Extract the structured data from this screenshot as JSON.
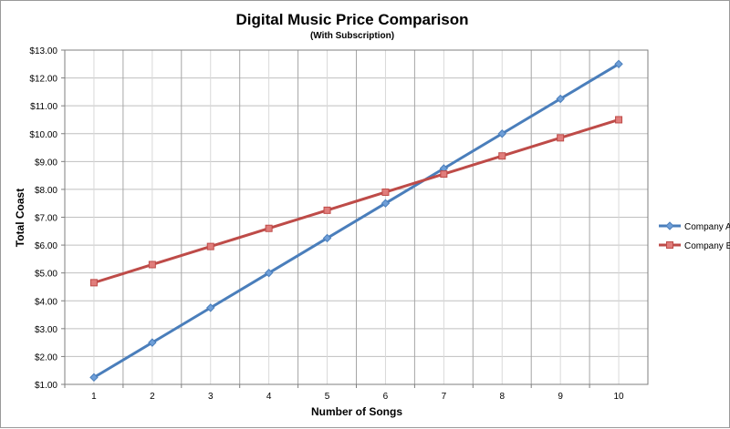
{
  "chart_data": {
    "type": "line",
    "title": "Digital Music Price Comparison",
    "subtitle": "(With Subscription)",
    "xlabel": "Number of Songs",
    "ylabel": "Total Coast",
    "categories": [
      "1",
      "2",
      "3",
      "4",
      "5",
      "6",
      "7",
      "8",
      "9",
      "10"
    ],
    "ylim": [
      1,
      13
    ],
    "ytick_step": 1,
    "ytick_labels": [
      "$1.00",
      "$2.00",
      "$3.00",
      "$4.00",
      "$5.00",
      "$6.00",
      "$7.00",
      "$8.00",
      "$9.00",
      "$10.00",
      "$11.00",
      "$12.00",
      "$13.00"
    ],
    "grid": true,
    "legend_position": "right",
    "series": [
      {
        "name": "Company A",
        "color": "#4a7ebb",
        "marker_fill": "#6f9fd8",
        "marker": "diamond",
        "values": [
          1.25,
          2.5,
          3.75,
          5.0,
          6.25,
          7.5,
          8.75,
          10.0,
          11.25,
          12.5
        ]
      },
      {
        "name": "Company B",
        "color": "#be4b48",
        "marker_fill": "#e07d7b",
        "marker": "square",
        "values": [
          4.65,
          5.3,
          5.95,
          6.6,
          7.25,
          7.9,
          8.55,
          9.2,
          9.85,
          10.5
        ]
      }
    ]
  }
}
